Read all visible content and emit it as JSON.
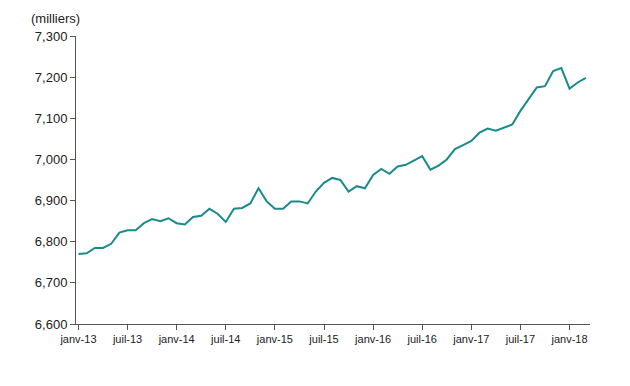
{
  "chart_data": {
    "type": "line",
    "y_label": "(milliers)",
    "color": "#1b8a8c",
    "grid": false,
    "categories": [
      "janv-13",
      null,
      null,
      null,
      null,
      null,
      "juil-13",
      null,
      null,
      null,
      null,
      null,
      "janv-14",
      null,
      null,
      null,
      null,
      null,
      "juil-14",
      null,
      null,
      null,
      null,
      null,
      "janv-15",
      null,
      null,
      null,
      null,
      null,
      "juil-15",
      null,
      null,
      null,
      null,
      null,
      "janv-16",
      null,
      null,
      null,
      null,
      null,
      "juil-16",
      null,
      null,
      null,
      null,
      null,
      "janv-17",
      null,
      null,
      null,
      null,
      null,
      "juil-17",
      null,
      null,
      null,
      null,
      null,
      "janv-18",
      null,
      null
    ],
    "values": [
      6770,
      6772,
      6785,
      6785,
      6795,
      6822,
      6828,
      6828,
      6845,
      6855,
      6850,
      6857,
      6845,
      6842,
      6860,
      6863,
      6880,
      6868,
      6848,
      6880,
      6882,
      6893,
      6930,
      6898,
      6880,
      6880,
      6898,
      6898,
      6893,
      6922,
      6943,
      6955,
      6950,
      6922,
      6935,
      6930,
      6962,
      6977,
      6965,
      6983,
      6987,
      6998,
      7008,
      6975,
      6985,
      7000,
      7025,
      7035,
      7045,
      7065,
      7075,
      7070,
      7078,
      7085,
      7118,
      7145,
      7175,
      7178,
      7215,
      7222,
      7172,
      7187,
      7198
    ],
    "ylim": [
      6600,
      7300
    ],
    "yticks": [
      {
        "value": 6600,
        "label": "6,600"
      },
      {
        "value": 6700,
        "label": "6,700"
      },
      {
        "value": 6800,
        "label": "6,800"
      },
      {
        "value": 6900,
        "label": "6,900"
      },
      {
        "value": 7000,
        "label": "7,000"
      },
      {
        "value": 7100,
        "label": "7,100"
      },
      {
        "value": 7200,
        "label": "7,200"
      },
      {
        "value": 7300,
        "label": "7,300"
      }
    ]
  }
}
